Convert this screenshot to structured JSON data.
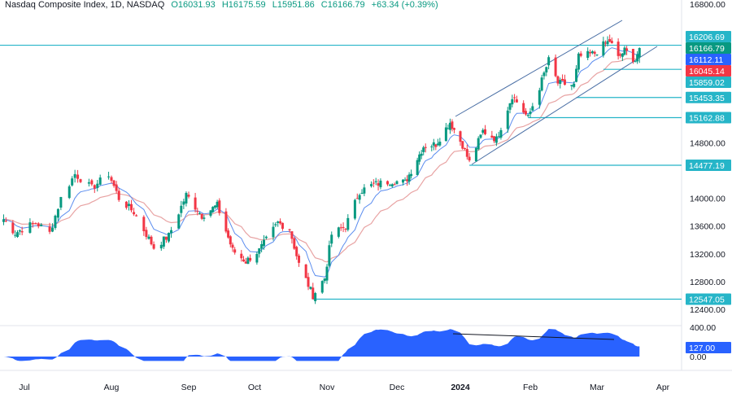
{
  "header": {
    "symbol": "Nasdaq Composite Index, 1D, NASDAQ",
    "open": "O16031.93",
    "high": "H16175.59",
    "low": "L15951.86",
    "close": "C16166.79",
    "change": "+63.34 (+0.39%)"
  },
  "colors": {
    "up": "#089981",
    "down": "#f23645",
    "level": "#26b5c8",
    "fast_ma": "#2962ff",
    "slow_ma": "#e8a3a3",
    "oscillator": "#2962ff",
    "channel": "#4a6fa5"
  },
  "chart_data": {
    "type": "candlestick",
    "price_axis": {
      "ticks": [
        "16800.00",
        "14800.00",
        "14000.00",
        "13600.00",
        "13200.00",
        "12800.00",
        "12400.00"
      ],
      "ylim": [
        12400,
        16800
      ]
    },
    "time_axis": {
      "ticks": [
        {
          "label": "Jul",
          "date": "2023-07-01"
        },
        {
          "label": "Aug",
          "date": "2023-08-01"
        },
        {
          "label": "Sep",
          "date": "2023-09-01"
        },
        {
          "label": "Oct",
          "date": "2023-10-01"
        },
        {
          "label": "Nov",
          "date": "2023-11-01"
        },
        {
          "label": "Dec",
          "date": "2023-12-01"
        },
        {
          "label": "2024",
          "date": "2024-01-01"
        },
        {
          "label": "Feb",
          "date": "2024-02-01"
        },
        {
          "label": "Mar",
          "date": "2024-03-01"
        },
        {
          "label": "Apr",
          "date": "2024-04-01"
        }
      ]
    },
    "approx_closes": [
      [
        "2023-06-22",
        13700
      ],
      [
        "2023-06-27",
        13500
      ],
      [
        "2023-07-05",
        13650
      ],
      [
        "2023-07-10",
        13500
      ],
      [
        "2023-07-14",
        14000
      ],
      [
        "2023-07-19",
        14350
      ],
      [
        "2023-07-25",
        14150
      ],
      [
        "2023-07-31",
        14350
      ],
      [
        "2023-08-04",
        14000
      ],
      [
        "2023-08-10",
        13800
      ],
      [
        "2023-08-18",
        13290
      ],
      [
        "2023-08-24",
        13460
      ],
      [
        "2023-08-31",
        14050
      ],
      [
        "2023-09-07",
        13750
      ],
      [
        "2023-09-14",
        13900
      ],
      [
        "2023-09-21",
        13250
      ],
      [
        "2023-09-27",
        13090
      ],
      [
        "2023-10-03",
        13250
      ],
      [
        "2023-10-11",
        13650
      ],
      [
        "2023-10-16",
        13560
      ],
      [
        "2023-10-20",
        13050
      ],
      [
        "2023-10-26",
        12600
      ],
      [
        "2023-10-31",
        12850
      ],
      [
        "2023-11-03",
        13480
      ],
      [
        "2023-11-09",
        13600
      ],
      [
        "2023-11-15",
        14100
      ],
      [
        "2023-11-21",
        14200
      ],
      [
        "2023-11-29",
        14250
      ],
      [
        "2023-12-05",
        14230
      ],
      [
        "2023-12-08",
        14400
      ],
      [
        "2023-12-14",
        14750
      ],
      [
        "2023-12-20",
        14780
      ],
      [
        "2023-12-27",
        15100
      ],
      [
        "2024-01-02",
        14770
      ],
      [
        "2024-01-05",
        14520
      ],
      [
        "2024-01-11",
        14970
      ],
      [
        "2024-01-17",
        14850
      ],
      [
        "2024-01-24",
        15480
      ],
      [
        "2024-01-31",
        15160
      ],
      [
        "2024-02-05",
        15600
      ],
      [
        "2024-02-09",
        15990
      ],
      [
        "2024-02-13",
        15660
      ],
      [
        "2024-02-20",
        15630
      ],
      [
        "2024-02-22",
        16040
      ],
      [
        "2024-02-29",
        16090
      ],
      [
        "2024-03-04",
        16210
      ],
      [
        "2024-03-07",
        16270
      ],
      [
        "2024-03-11",
        16020
      ],
      [
        "2024-03-14",
        16130
      ],
      [
        "2024-03-19",
        15990
      ],
      [
        "2024-03-21",
        16166.79
      ]
    ],
    "levels": [
      {
        "value": 16206.69,
        "label": "16206.69",
        "from": "2023-06-15"
      },
      {
        "value": 15859.02,
        "label": "15859.02",
        "from": "2024-03-04"
      },
      {
        "value": 15453.35,
        "label": "15453.35",
        "from": "2024-02-21"
      },
      {
        "value": 15162.88,
        "label": "15162.88",
        "from": "2024-01-31"
      },
      {
        "value": 14477.19,
        "label": "14477.19",
        "from": "2024-01-05"
      },
      {
        "value": 12547.05,
        "label": "12547.05",
        "from": "2023-10-26"
      }
    ],
    "price_labels": [
      {
        "value": 16166.79,
        "label": "16166.79",
        "kind": "close"
      },
      {
        "value": 16112.11,
        "label": "16112.11",
        "kind": "fast_ma"
      },
      {
        "value": 16045.14,
        "label": "16045.14",
        "kind": "slow_ma"
      }
    ],
    "oscillator": {
      "ticks": [
        "400.00",
        "0.00"
      ],
      "last": "127.00",
      "ylim": [
        0,
        400
      ]
    }
  }
}
